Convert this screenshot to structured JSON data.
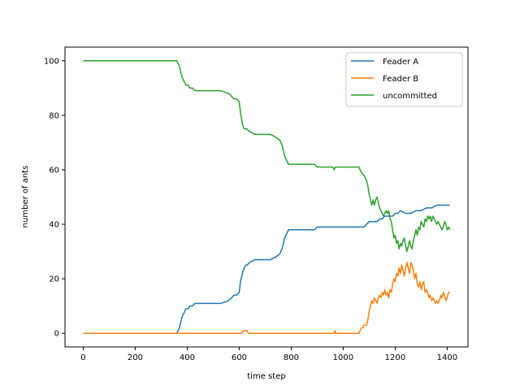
{
  "chart_data": {
    "type": "line",
    "title": "",
    "xlabel": "time step",
    "ylabel": "number of ants",
    "xlim": [
      -70,
      1480
    ],
    "ylim": [
      -5,
      105
    ],
    "xticks": [
      0,
      200,
      400,
      600,
      800,
      1000,
      1200,
      1400
    ],
    "yticks": [
      0,
      20,
      40,
      60,
      80,
      100
    ],
    "grid": false,
    "legend": "top-right",
    "series": [
      {
        "name": "Feader A",
        "color": "#1f77b4",
        "x": [
          0,
          360,
          365,
          370,
          375,
          380,
          385,
          390,
          395,
          400,
          405,
          410,
          420,
          430,
          445,
          470,
          500,
          530,
          560,
          570,
          580,
          590,
          600,
          605,
          610,
          615,
          620,
          625,
          630,
          640,
          660,
          680,
          700,
          720,
          740,
          755,
          760,
          765,
          770,
          775,
          780,
          785,
          790,
          795,
          800,
          820,
          860,
          880,
          890,
          900,
          960,
          1000,
          1060,
          1080,
          1090,
          1100,
          1130,
          1140,
          1150,
          1160,
          1170,
          1180,
          1190,
          1200,
          1210,
          1220,
          1240,
          1260,
          1280,
          1300,
          1320,
          1340,
          1360,
          1380,
          1400,
          1410
        ],
        "values": [
          0,
          0,
          1,
          2,
          4,
          6,
          7,
          8,
          9,
          9,
          9,
          10,
          10,
          11,
          11,
          11,
          11,
          11,
          12,
          13,
          14,
          14,
          15,
          19,
          21,
          23,
          24,
          25,
          25,
          26,
          27,
          27,
          27,
          27,
          28,
          29,
          30,
          31,
          33,
          35,
          36,
          37,
          38,
          38,
          38,
          38,
          38,
          38,
          38,
          39,
          39,
          39,
          39,
          39,
          40,
          41,
          41,
          42,
          42,
          43,
          43,
          43,
          43,
          44,
          44,
          45,
          44,
          44,
          45,
          45,
          46,
          46,
          47,
          47,
          47,
          47
        ]
      },
      {
        "name": "Feader B",
        "color": "#ff7f0e",
        "x": [
          0,
          610,
          615,
          630,
          635,
          965,
          968,
          972,
          1060,
          1070,
          1075,
          1080,
          1085,
          1090,
          1095,
          1100,
          1105,
          1110,
          1115,
          1120,
          1125,
          1130,
          1135,
          1140,
          1145,
          1150,
          1155,
          1160,
          1165,
          1170,
          1175,
          1180,
          1185,
          1190,
          1195,
          1200,
          1205,
          1210,
          1215,
          1220,
          1225,
          1230,
          1235,
          1240,
          1245,
          1250,
          1255,
          1260,
          1265,
          1270,
          1275,
          1280,
          1285,
          1290,
          1295,
          1300,
          1305,
          1310,
          1315,
          1320,
          1325,
          1330,
          1335,
          1340,
          1345,
          1350,
          1355,
          1360,
          1365,
          1370,
          1375,
          1380,
          1385,
          1390,
          1395,
          1400,
          1405,
          1410
        ],
        "values": [
          0,
          0,
          1,
          1,
          0,
          0,
          1,
          0,
          0,
          2,
          2,
          3,
          3,
          3,
          5,
          8,
          10,
          12,
          11,
          13,
          12,
          11,
          13,
          14,
          13,
          15,
          14,
          16,
          14,
          15,
          13,
          16,
          15,
          18,
          20,
          19,
          22,
          21,
          24,
          22,
          25,
          23,
          21,
          24,
          26,
          24,
          22,
          26,
          25,
          23,
          20,
          22,
          18,
          17,
          19,
          16,
          18,
          19,
          15,
          16,
          15,
          13,
          14,
          12,
          13,
          12,
          11,
          12,
          11,
          12,
          14,
          13,
          15,
          14,
          12,
          13,
          15,
          15
        ]
      },
      {
        "name": "uncommitted",
        "color": "#2ca02c",
        "x": [
          0,
          360,
          365,
          370,
          375,
          380,
          385,
          390,
          395,
          400,
          405,
          410,
          420,
          430,
          445,
          470,
          500,
          530,
          560,
          570,
          580,
          590,
          600,
          605,
          610,
          615,
          620,
          625,
          630,
          640,
          660,
          680,
          700,
          720,
          740,
          755,
          760,
          765,
          770,
          775,
          780,
          785,
          790,
          795,
          800,
          820,
          860,
          880,
          890,
          900,
          960,
          965,
          970,
          1000,
          1060,
          1070,
          1080,
          1090,
          1095,
          1100,
          1105,
          1110,
          1115,
          1120,
          1125,
          1130,
          1135,
          1140,
          1145,
          1150,
          1155,
          1160,
          1165,
          1170,
          1175,
          1180,
          1185,
          1190,
          1195,
          1200,
          1205,
          1210,
          1215,
          1220,
          1225,
          1230,
          1235,
          1240,
          1245,
          1250,
          1255,
          1260,
          1265,
          1270,
          1275,
          1280,
          1285,
          1290,
          1295,
          1300,
          1305,
          1310,
          1315,
          1320,
          1325,
          1330,
          1335,
          1340,
          1345,
          1350,
          1355,
          1360,
          1365,
          1370,
          1375,
          1380,
          1385,
          1390,
          1395,
          1400,
          1405,
          1410
        ],
        "values": [
          100,
          100,
          99,
          98,
          96,
          94,
          93,
          92,
          91,
          91,
          91,
          90,
          90,
          89,
          89,
          89,
          89,
          89,
          88,
          87,
          86,
          86,
          85,
          81,
          78,
          76,
          75,
          75,
          75,
          74,
          73,
          73,
          73,
          73,
          72,
          71,
          70,
          69,
          67,
          65,
          64,
          63,
          62,
          62,
          62,
          62,
          62,
          62,
          62,
          61,
          61,
          60,
          61,
          61,
          61,
          59,
          58,
          56,
          54,
          51,
          49,
          47,
          49,
          47,
          49,
          50,
          48,
          46,
          45,
          44,
          43,
          44,
          45,
          44,
          45,
          42,
          41,
          38,
          35,
          36,
          33,
          34,
          31,
          33,
          32,
          34,
          35,
          32,
          30,
          32,
          34,
          32,
          31,
          34,
          36,
          38,
          36,
          39,
          38,
          41,
          40,
          39,
          42,
          41,
          43,
          42,
          43,
          41,
          43,
          42,
          41,
          40,
          41,
          40,
          39,
          38,
          39,
          41,
          40,
          38,
          39,
          38
        ]
      }
    ]
  }
}
